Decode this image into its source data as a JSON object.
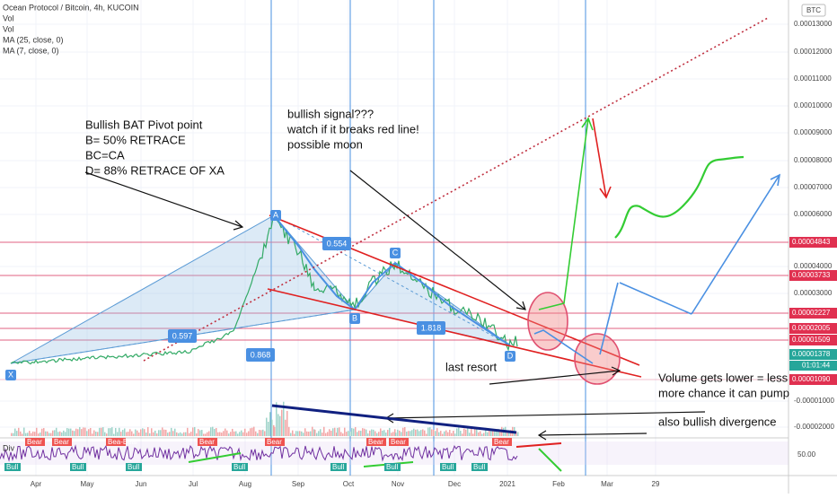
{
  "header": {
    "symbol": "Ocean Protocol / Bitcoin, 4h, KUCOIN",
    "indicators": [
      "Vol",
      "Vol",
      "MA (25, close, 0)",
      "MA (7, close, 0)"
    ]
  },
  "price_axis": {
    "currency": "BTC",
    "labels": [
      "0.00013000",
      "0.00012000",
      "0.00011000",
      "0.00010000",
      "0.00009000",
      "0.00008000",
      "0.00007000",
      "0.00006000",
      "0.00004000",
      "0.00003000",
      "-0.00001000",
      "-0.00002000"
    ],
    "highlighted": [
      "0.00004843",
      "0.00003733",
      "0.00002227",
      "0.00002005",
      "0.00001509",
      "0.00001378",
      "0.00001090"
    ],
    "countdown": "01:01:44",
    "rsi_level": "50.00"
  },
  "time_axis": [
    "Apr",
    "May",
    "Jun",
    "Jul",
    "Aug",
    "Sep",
    "Oct",
    "Nov",
    "Dec",
    "2021",
    "Feb",
    "Mar",
    "29"
  ],
  "pattern": {
    "points": [
      "X",
      "A",
      "B",
      "C",
      "D"
    ],
    "ratios": [
      "0.597",
      "0.554",
      "0.868",
      "1.818"
    ]
  },
  "notes": {
    "bat": [
      "Bullish BAT Pivot point",
      "B= 50% RETRACE",
      "BC=CA",
      "D= 88% RETRACE OF XA"
    ],
    "signal": [
      "bullish signal???",
      "watch if it breaks red line!",
      "possible moon"
    ],
    "last_resort": "last resort",
    "volume": [
      "Volume gets lower = less c",
      "more chance it can pump"
    ],
    "divergence": "also bullish divergence"
  },
  "oscillator": {
    "name": "Div",
    "bear": [
      "Bear",
      "Bear",
      "Bea-Bear",
      "Bear",
      "Bear",
      "Bear",
      "Bear",
      "Bear"
    ],
    "bull": [
      "Bull",
      "Bull",
      "Bull",
      "Bull",
      "Bull",
      "Bull",
      "Bull",
      "Bull"
    ]
  }
}
